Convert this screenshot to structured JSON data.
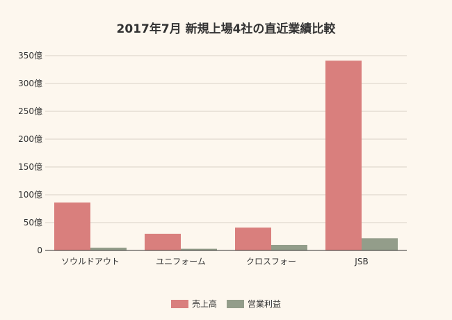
{
  "chart_data": {
    "type": "bar",
    "title": "2017年7月 新規上場4社の直近業績比較",
    "xlabel": "",
    "ylabel": "",
    "categories": [
      "ソウルドアウト",
      "ユニフォーム",
      "クロスフォー",
      "JSB"
    ],
    "series": [
      {
        "name": "売上高",
        "values": [
          86,
          30,
          41,
          341
        ],
        "color": "#d97f7d"
      },
      {
        "name": "営業利益",
        "values": [
          5,
          3,
          10,
          22
        ],
        "color": "#939d8a"
      }
    ],
    "ylim": [
      0,
      350
    ],
    "y_ticks": [
      0,
      50,
      100,
      150,
      200,
      250,
      300,
      350
    ],
    "y_tick_suffix": "億",
    "grid": true,
    "legend_position": "bottom-center",
    "background_color": "#fdf7ee"
  }
}
